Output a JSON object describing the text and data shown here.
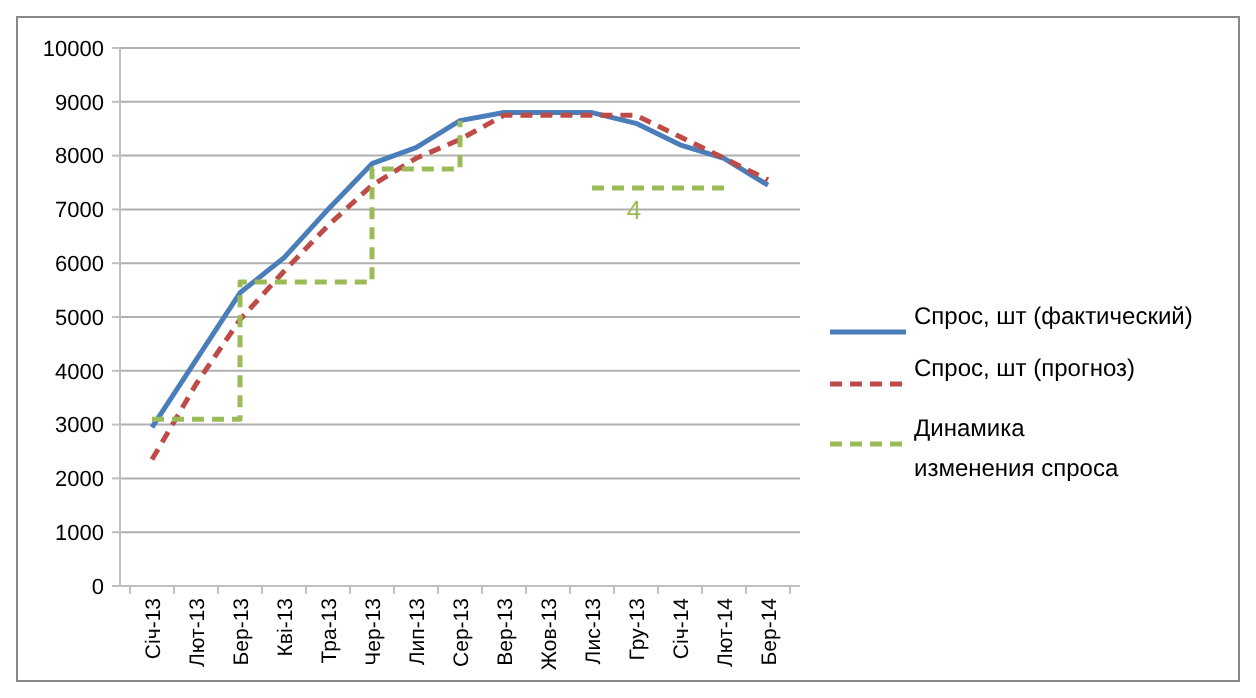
{
  "chart_data": {
    "type": "line",
    "categories": [
      "Січ-13",
      "Лют-13",
      "Бер-13",
      "Кві-13",
      "Тра-13",
      "Чер-13",
      "Лип-13",
      "Сер-13",
      "Вер-13",
      "Жов-13",
      "Лис-13",
      "Гру-13",
      "Січ-14",
      "Лют-14",
      "Бер-14"
    ],
    "series": [
      {
        "name": "Спрос, шт (фактический)",
        "color": "#4a7ebb",
        "line_style": "solid",
        "values": [
          2950,
          4200,
          5450,
          6100,
          7000,
          7850,
          8150,
          8650,
          8800,
          8800,
          8800,
          8600,
          8200,
          7950,
          7450
        ]
      },
      {
        "name": "Спрос, шт (прогноз)",
        "color": "#be4b48",
        "line_style": "dashed",
        "values": [
          2350,
          3750,
          4950,
          5850,
          6700,
          7450,
          7950,
          8300,
          8750,
          8750,
          8750,
          8750,
          8350,
          7950,
          7550
        ]
      },
      {
        "name": "Динамика изменения спроса",
        "type": "step",
        "color": "#9bbb59",
        "line_style": "dashed",
        "values": [
          3100,
          3100,
          5650,
          5650,
          5650,
          7750,
          7750,
          8650,
          null,
          null,
          7400,
          7400,
          7400,
          7400,
          null
        ]
      }
    ],
    "ylim": [
      0,
      10000
    ],
    "yticks": [
      0,
      1000,
      2000,
      3000,
      4000,
      5000,
      6000,
      7000,
      8000,
      9000,
      10000
    ],
    "grid": "y",
    "legend": "right",
    "marker": "none",
    "annotations": [
      "4"
    ]
  }
}
